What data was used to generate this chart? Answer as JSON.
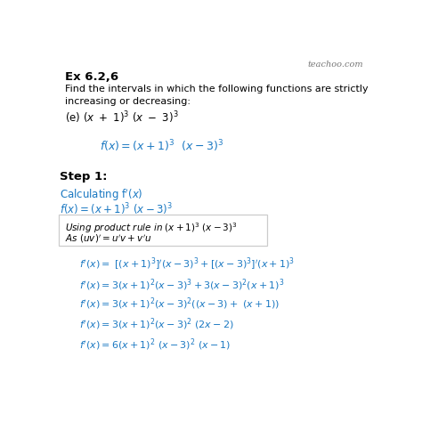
{
  "bg_color": "#ffffff",
  "title_text": "Ex 6.2,6",
  "desc_line1": "Find the intervals in which the following functions are strictly",
  "desc_line2": "increasing or decreasing:",
  "desc_line3": "(e) $(x \\ + \\ 1)^3 \\ (x \\ - \\ 3)^3$",
  "blue_fx": "$f(x) = (x+1)^3 \\ \\ (x-3)^3$",
  "step1": "Step 1:",
  "calc_label": "Calculating f$'(x)$",
  "fx_blue": "$f(x) = (x+1)^3 \\ (x-3)^3$",
  "box_line1": "Using product rule in $(x + 1)^3 \\ (x - 3)^3$",
  "box_line2": "As $(uv)' = u'v + v'u$",
  "fpx1": "$f'(x) = \\ [(x+1)^3]'(x-3)^3 +[(x-3)^3]'(x+1)^3$",
  "fpx2": "$f'(x) = 3(x+1)^2(x-3)^3 +3(x-3)^2(x+1)^3$",
  "fpx3": "$f'(x) = 3(x+1)^2(x-3)^2 \\left((x-3) + \\ (x+1)\\right)$",
  "fpx4": "$f'(x) = 3(x+1)^2(x-3)^2 \\ (2x-2)$",
  "fpx5": "$f'(x) = 6(x+1)^2 \\ (x-3)^2 \\ (x-1)$",
  "teachoo_text": "teachoo.com",
  "black_color": "#000000",
  "blue_color": "#1a78c2",
  "box_bg": "#ffffff",
  "watermark_color": "#777777",
  "border_color": "#cccccc"
}
